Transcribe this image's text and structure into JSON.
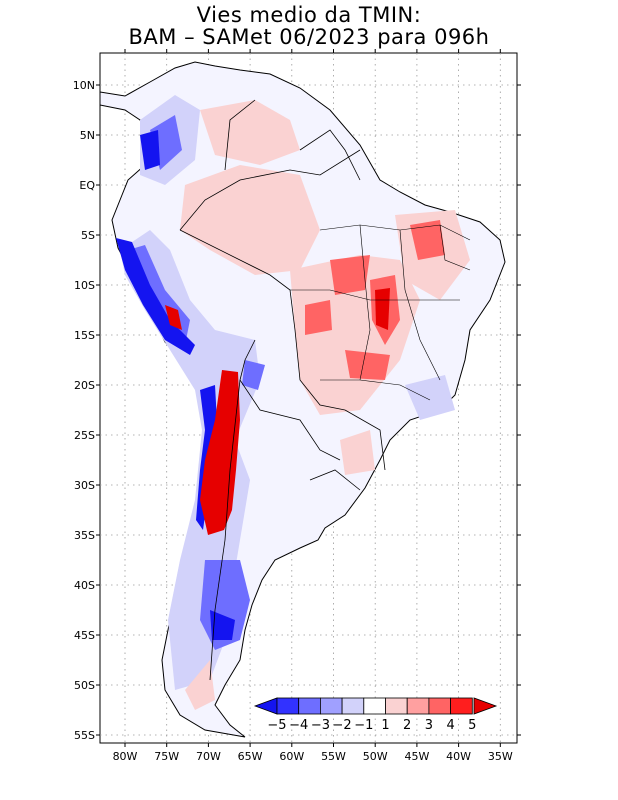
{
  "title_line1": "Vies medio da TMIN:",
  "title_line2": "BAM – SAMet 06/2023  para 096h",
  "lat_labels": [
    "10N",
    "5N",
    "EQ",
    "5S",
    "10S",
    "15S",
    "20S",
    "25S",
    "30S",
    "35S",
    "40S",
    "45S",
    "50S",
    "55S"
  ],
  "lon_labels": [
    "80W",
    "75W",
    "70W",
    "65W",
    "60W",
    "55W",
    "50W",
    "45W",
    "40W",
    "35W"
  ],
  "colorbar": {
    "labels": [
      "-5",
      "-4",
      "-3",
      "-2",
      "-1",
      "1",
      "2",
      "3",
      "4",
      "5"
    ],
    "colors": [
      "#1414f0",
      "#3232ff",
      "#6e6eff",
      "#a0a0ff",
      "#d2d2fa",
      "#ffffff",
      "#fad2d2",
      "#ffa0a0",
      "#ff6464",
      "#ff1e1e",
      "#e60000"
    ]
  },
  "colors": {
    "strong_blue": "#1414f0",
    "blue": "#6e6eff",
    "light_blue": "#d2d2fa",
    "light_red": "#fad2d2",
    "red": "#ff6464",
    "strong_red": "#e60000"
  }
}
